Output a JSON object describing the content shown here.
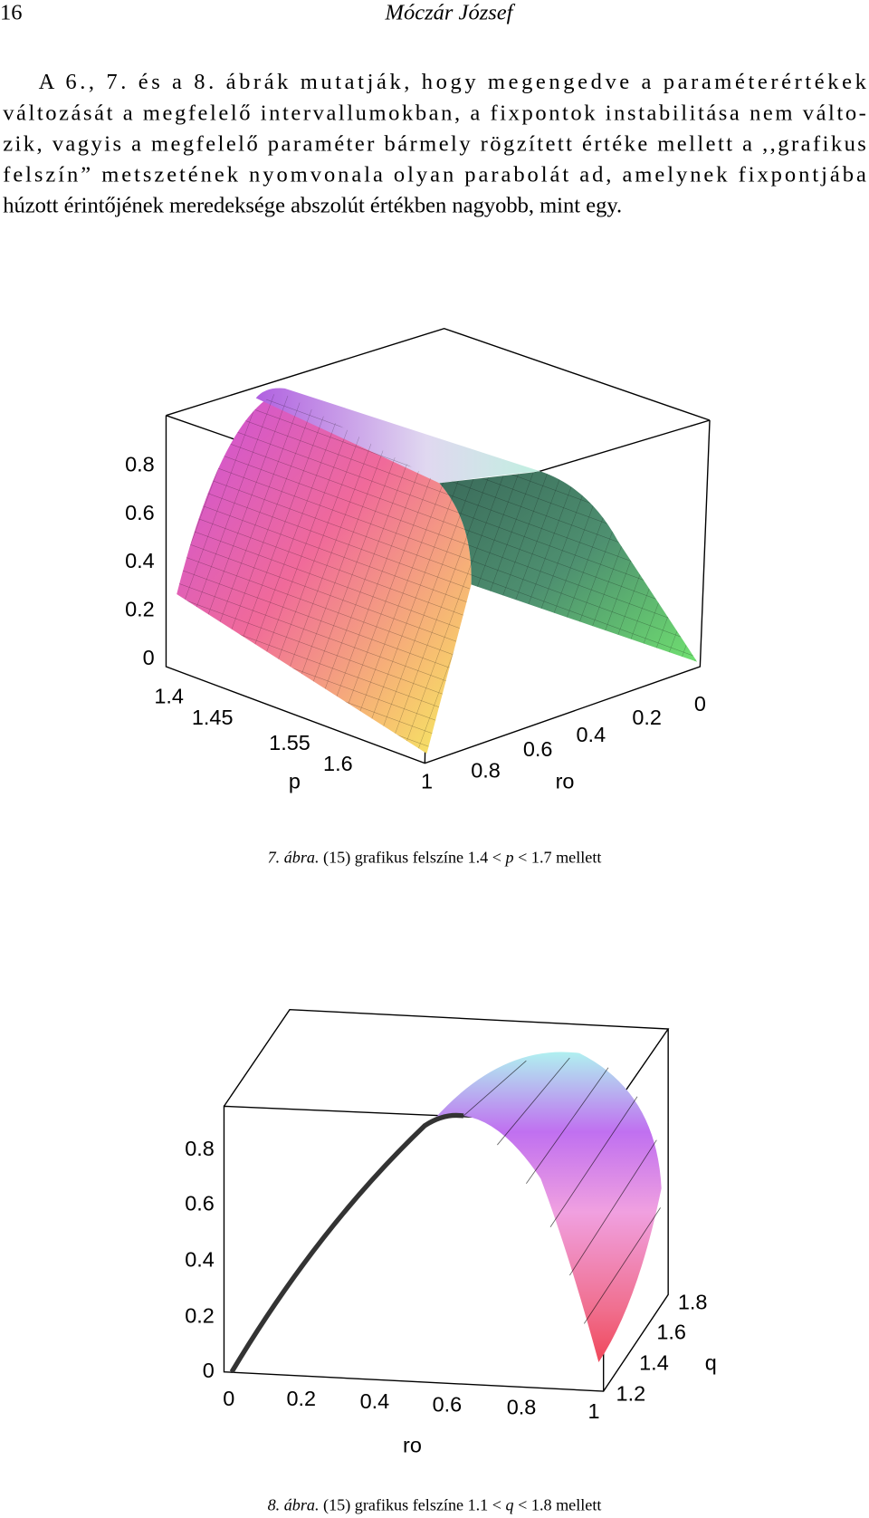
{
  "header": {
    "page_number": "16",
    "author": "Móczár József"
  },
  "paragraph": {
    "lines": [
      "A 6., 7. és a 8. ábrák mutatják, hogy megengedve a paraméterértékek",
      "változását a megfelelő intervallumokban, a fixpontok instabilitása nem válto-",
      "zik, vagyis a megfelelő paraméter bármely rögzített értéke mellett a ,,grafikus",
      "felszín” metszetének nyomvonala olyan parabolát ad, amelynek fixpontjába",
      "húzott érintőjének meredeksége abszolút értékben nagyobb, mint egy."
    ]
  },
  "figures": [
    {
      "z_ticks": [
        "0.8",
        "0.6",
        "0.4",
        "0.2",
        "0"
      ],
      "p_ticks": [
        "1.4",
        "1.45",
        "1.55",
        "1.6"
      ],
      "p_label": "p",
      "ro_ticks": [
        "1",
        "0.8",
        "0.6",
        "0.4",
        "0.2",
        "0"
      ],
      "ro_label": "ro",
      "caption": {
        "label": "7. ábra.",
        "text_before": "(15) grafikus felszíne 1.4 <",
        "variable": "p",
        "text_after": "< 1.7 mellett"
      }
    },
    {
      "z_ticks": [
        "0.8",
        "0.6",
        "0.4",
        "0.2",
        "0"
      ],
      "ro_ticks": [
        "0",
        "0.2",
        "0.4",
        "0.6",
        "0.8",
        "1"
      ],
      "ro_label": "ro",
      "q_ticks": [
        "1.8",
        "1.6",
        "1.4",
        "1.2"
      ],
      "q_label": "q",
      "caption": {
        "label": "8. ábra.",
        "text_before": "(15) grafikus felszíne 1.1 <",
        "variable": "q",
        "text_after": "< 1.8 mellett"
      }
    }
  ]
}
